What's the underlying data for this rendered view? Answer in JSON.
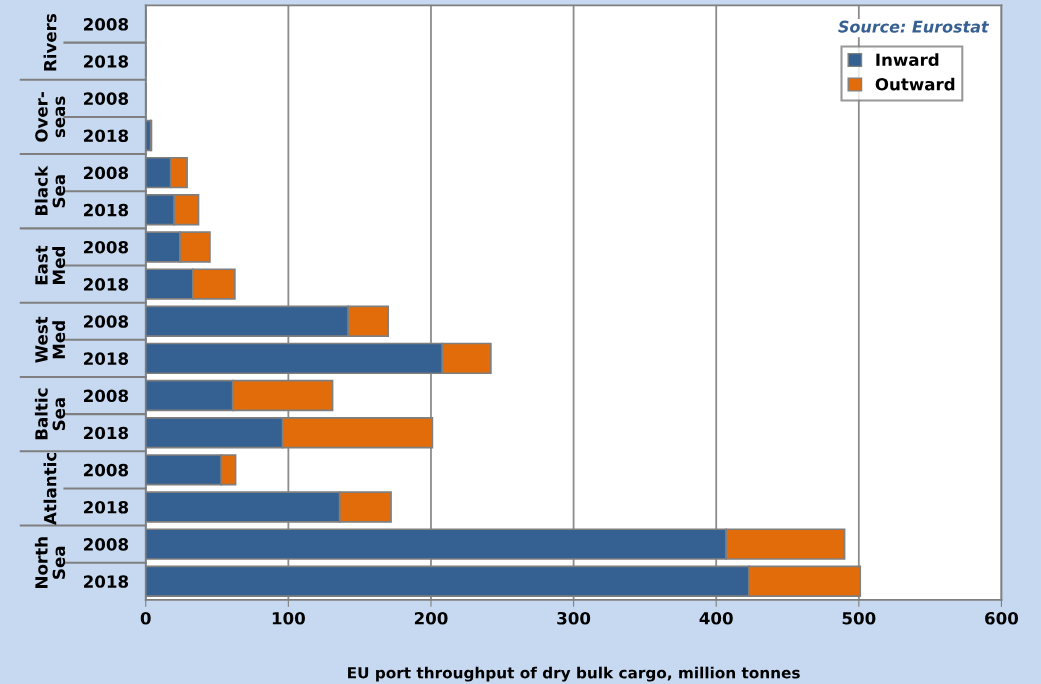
{
  "chart_data": {
    "type": "bar",
    "orientation": "horizontal",
    "stacked": true,
    "categories": [
      "2008",
      "2018",
      "2008",
      "2018",
      "2008",
      "2018",
      "2008",
      "2018",
      "2008",
      "2018",
      "2008",
      "2018",
      "2008",
      "2018",
      "2008",
      "2018"
    ],
    "series": [
      {
        "name": "Inward",
        "color": "#356092",
        "values": [
          null,
          null,
          null,
          3.5,
          17.5,
          20,
          24,
          33,
          142,
          208,
          61,
          96,
          53,
          136,
          407,
          423
        ]
      },
      {
        "name": "Outward",
        "color": "#e36c0a",
        "values": [
          null,
          null,
          null,
          0.5,
          11.5,
          17,
          21,
          29.5,
          28,
          34,
          70,
          105,
          10,
          36,
          83,
          78
        ]
      }
    ],
    "xlabel": "EU port throughput of dry bulk cargo, million tonnes",
    "xlim": [
      0,
      600
    ],
    "xticks": [
      0,
      100,
      200,
      300,
      400,
      500,
      600
    ],
    "grid": "x",
    "legend": "top right",
    "annotations": [
      "Source: Eurostat",
      "Rivers",
      "Over-\nseas",
      "Black\nSea",
      "East\nMed",
      "West\nMed",
      "Baltic\nSea",
      "Atlantic",
      "North\nSea"
    ]
  }
}
